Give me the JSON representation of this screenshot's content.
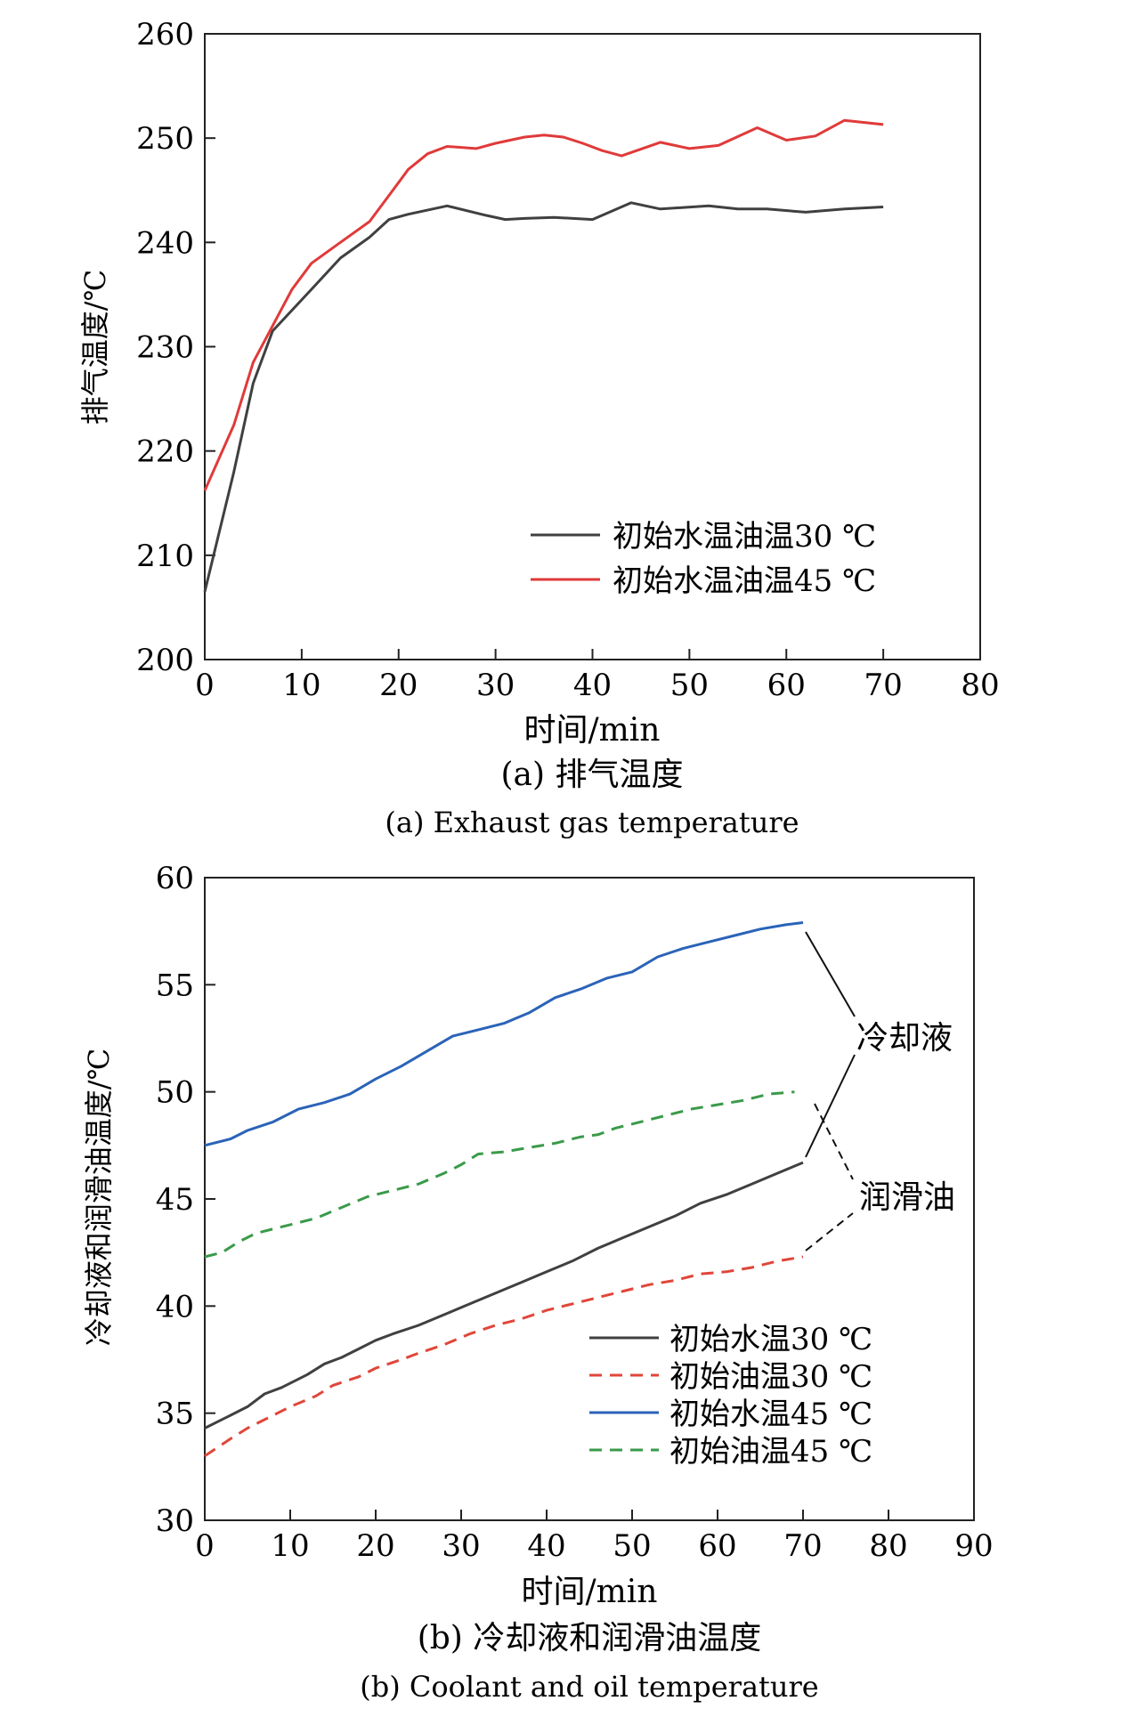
{
  "chart_data": [
    {
      "type": "line",
      "caption_cn": "(a) 排气温度",
      "caption_en": "(a) Exhaust gas temperature",
      "xlabel": "时间/min",
      "ylabel": "排气温度/℃",
      "xlim": [
        0,
        80
      ],
      "ylim": [
        200,
        260
      ],
      "xticks": [
        0,
        10,
        20,
        30,
        40,
        50,
        60,
        70,
        80
      ],
      "yticks": [
        200,
        210,
        220,
        230,
        240,
        250,
        260
      ],
      "grid": false,
      "legend_position": "bottom-right",
      "series": [
        {
          "name": "初始水温油温30 ℃",
          "color": "#404040",
          "dash": "solid",
          "x": [
            0,
            3,
            5,
            7,
            9,
            11,
            14,
            17,
            19,
            21,
            25,
            29,
            31,
            33,
            36,
            38,
            40,
            44,
            47,
            52,
            55,
            58,
            62,
            66,
            70
          ],
          "y": [
            206.5,
            218,
            226.5,
            231.5,
            233.5,
            235.5,
            238.5,
            240.5,
            242.2,
            242.7,
            243.5,
            242.6,
            242.2,
            242.3,
            242.4,
            242.3,
            242.2,
            243.8,
            243.2,
            243.5,
            243.2,
            243.2,
            242.9,
            243.2,
            243.4
          ]
        },
        {
          "name": "初始水温油温45 ℃",
          "color": "#e03a3a",
          "dash": "solid",
          "x": [
            0,
            3,
            5,
            7,
            9,
            11,
            14,
            17,
            19,
            21,
            23,
            25,
            28,
            30,
            33,
            35,
            37,
            39,
            41,
            43,
            47,
            50,
            53,
            57,
            60,
            63,
            66,
            70
          ],
          "y": [
            216.2,
            222.5,
            228.5,
            232,
            235.5,
            238,
            240,
            242,
            244.5,
            247,
            248.5,
            249.2,
            249,
            249.5,
            250.1,
            250.3,
            250.1,
            249.5,
            248.8,
            248.3,
            249.6,
            249,
            249.3,
            251,
            249.8,
            250.2,
            251.7,
            251.3
          ]
        }
      ]
    },
    {
      "type": "line",
      "caption_cn": "(b) 冷却液和润滑油温度",
      "caption_en": "(b) Coolant and oil temperature",
      "xlabel": "时间/min",
      "ylabel": "冷却液和润滑油温度/℃",
      "xlim": [
        0,
        90
      ],
      "ylim": [
        30,
        60
      ],
      "xticks": [
        0,
        10,
        20,
        30,
        40,
        50,
        60,
        70,
        80,
        90
      ],
      "yticks": [
        30,
        35,
        40,
        45,
        50,
        55,
        60
      ],
      "grid": false,
      "legend_position": "bottom-right",
      "annotations": [
        {
          "text": "冷却液",
          "targets": [
            2,
            0
          ]
        },
        {
          "text": "润滑油",
          "targets": [
            3,
            1
          ]
        }
      ],
      "series": [
        {
          "name": "初始水温30 ℃",
          "color": "#404040",
          "dash": "solid",
          "x": [
            0,
            3,
            5,
            7,
            9,
            12,
            14,
            16,
            18,
            20,
            22,
            25,
            28,
            31,
            34,
            37,
            40,
            43,
            46,
            49,
            52,
            55,
            58,
            61,
            64,
            67,
            70
          ],
          "y": [
            34.3,
            34.9,
            35.3,
            35.9,
            36.2,
            36.8,
            37.3,
            37.6,
            38.0,
            38.4,
            38.7,
            39.1,
            39.6,
            40.1,
            40.6,
            41.1,
            41.6,
            42.1,
            42.7,
            43.2,
            43.7,
            44.2,
            44.8,
            45.2,
            45.7,
            46.2,
            46.7
          ]
        },
        {
          "name": "初始油温30 ℃",
          "color": "#e0463a",
          "dash": "dashed",
          "x": [
            0,
            3,
            5,
            8,
            10,
            13,
            15,
            18,
            20,
            23,
            25,
            28,
            31,
            34,
            37,
            40,
            43,
            46,
            49,
            52,
            55,
            58,
            61,
            64,
            67,
            70
          ],
          "y": [
            33.0,
            33.8,
            34.3,
            34.9,
            35.3,
            35.8,
            36.3,
            36.7,
            37.1,
            37.5,
            37.8,
            38.2,
            38.7,
            39.1,
            39.4,
            39.8,
            40.1,
            40.4,
            40.7,
            41.0,
            41.2,
            41.5,
            41.6,
            41.8,
            42.1,
            42.3
          ]
        },
        {
          "name": "初始水温45 ℃",
          "color": "#2b63b8",
          "dash": "solid",
          "x": [
            0,
            3,
            5,
            8,
            11,
            14,
            17,
            20,
            23,
            26,
            29,
            32,
            35,
            38,
            41,
            44,
            47,
            50,
            53,
            56,
            59,
            62,
            65,
            68,
            70
          ],
          "y": [
            47.5,
            47.8,
            48.2,
            48.6,
            49.2,
            49.5,
            49.9,
            50.6,
            51.2,
            51.9,
            52.6,
            52.9,
            53.2,
            53.7,
            54.4,
            54.8,
            55.3,
            55.6,
            56.3,
            56.7,
            57.0,
            57.3,
            57.6,
            57.8,
            57.9
          ]
        },
        {
          "name": "初始油温45 ℃",
          "color": "#3a9a4a",
          "dash": "dashed",
          "x": [
            0,
            2,
            4,
            6,
            8,
            10,
            13,
            16,
            19,
            22,
            25,
            28,
            30,
            32,
            35,
            38,
            41,
            44,
            46,
            48,
            51,
            54,
            57,
            60,
            63,
            66,
            69
          ],
          "y": [
            42.3,
            42.5,
            43.0,
            43.4,
            43.6,
            43.8,
            44.1,
            44.6,
            45.1,
            45.4,
            45.7,
            46.2,
            46.6,
            47.1,
            47.2,
            47.4,
            47.6,
            47.9,
            48.0,
            48.3,
            48.6,
            48.9,
            49.2,
            49.4,
            49.6,
            49.9,
            50.0
          ]
        }
      ]
    }
  ]
}
